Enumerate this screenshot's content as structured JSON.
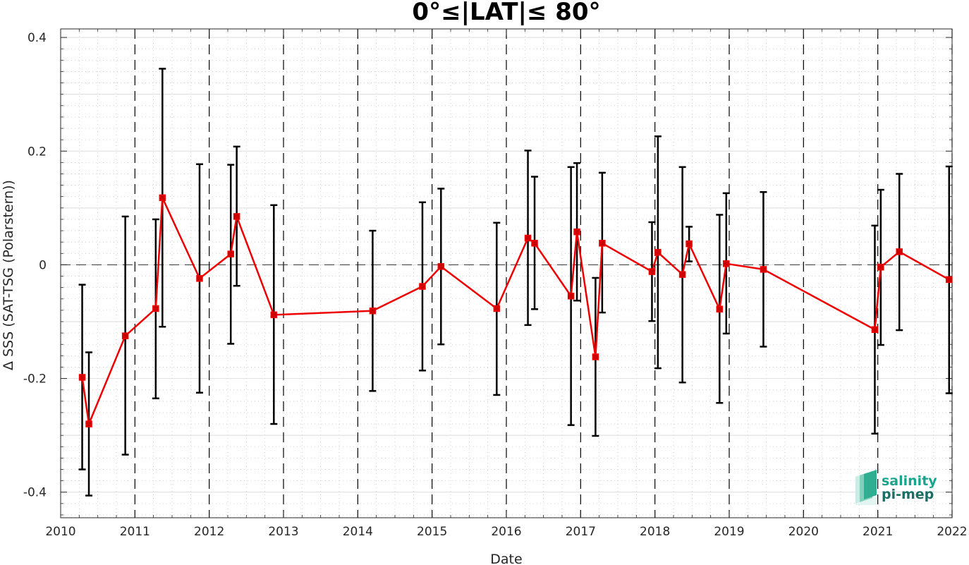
{
  "chart_data": {
    "type": "scatter",
    "title": "0°≤|LAT|≤ 80°",
    "xlabel": "Date",
    "ylabel": "Δ SSS (SAT-TSG (Polarstern))",
    "xlim": [
      2010,
      2022
    ],
    "ylim": [
      -0.445,
      0.415
    ],
    "x_ticks": [
      2010,
      2011,
      2012,
      2013,
      2014,
      2015,
      2016,
      2017,
      2018,
      2019,
      2020,
      2021,
      2022
    ],
    "y_ticks": [
      -0.4,
      -0.2,
      0,
      0.2,
      0.4
    ],
    "y_tick_labels": [
      "-0.4",
      "-0.2",
      "0",
      "0.2",
      "0.4"
    ],
    "grid": true,
    "vertical_year_markers": [
      2011,
      2012,
      2013,
      2014,
      2015,
      2016,
      2017,
      2018,
      2019,
      2020,
      2021,
      2022
    ],
    "zero_line": true,
    "series": [
      {
        "x": [
          2010.29,
          2010.38,
          2010.87,
          2011.28,
          2011.37,
          2011.87,
          2012.29,
          2012.37,
          2012.87,
          2014.2,
          2014.87,
          2015.12,
          2015.87,
          2016.29,
          2016.38,
          2016.87,
          2016.95,
          2017.2,
          2017.29,
          2017.96,
          2018.04,
          2018.37,
          2018.46,
          2018.87,
          2018.96,
          2019.46,
          2020.96,
          2021.04,
          2021.29,
          2021.96
        ],
        "y": [
          -0.198,
          -0.28,
          -0.125,
          -0.077,
          0.118,
          -0.024,
          0.019,
          0.085,
          -0.088,
          -0.081,
          -0.038,
          -0.003,
          -0.077,
          0.047,
          0.038,
          -0.055,
          0.058,
          -0.162,
          0.038,
          -0.012,
          0.022,
          -0.017,
          0.037,
          -0.078,
          0.002,
          -0.008,
          -0.114,
          -0.004,
          0.023,
          -0.026
        ],
        "err_low": [
          -0.36,
          -0.406,
          -0.334,
          -0.235,
          -0.109,
          -0.225,
          -0.139,
          -0.037,
          -0.28,
          -0.222,
          -0.186,
          -0.14,
          -0.229,
          -0.106,
          -0.078,
          -0.282,
          -0.063,
          -0.301,
          -0.084,
          -0.099,
          -0.182,
          -0.207,
          0.006,
          -0.243,
          -0.121,
          -0.144,
          -0.297,
          -0.141,
          -0.115,
          -0.226
        ],
        "err_high": [
          -0.035,
          -0.154,
          0.085,
          0.08,
          0.345,
          0.177,
          0.176,
          0.208,
          0.105,
          0.06,
          0.11,
          0.134,
          0.074,
          0.201,
          0.155,
          0.172,
          0.179,
          -0.023,
          0.162,
          0.075,
          0.226,
          0.172,
          0.067,
          0.088,
          0.126,
          0.128,
          0.069,
          0.132,
          0.16,
          0.173
        ],
        "line_color": "#ee0000",
        "marker": "square",
        "errorbar_color": "#000000"
      }
    ]
  },
  "logo": {
    "line1": "salinity",
    "line2": "pi-mep"
  }
}
